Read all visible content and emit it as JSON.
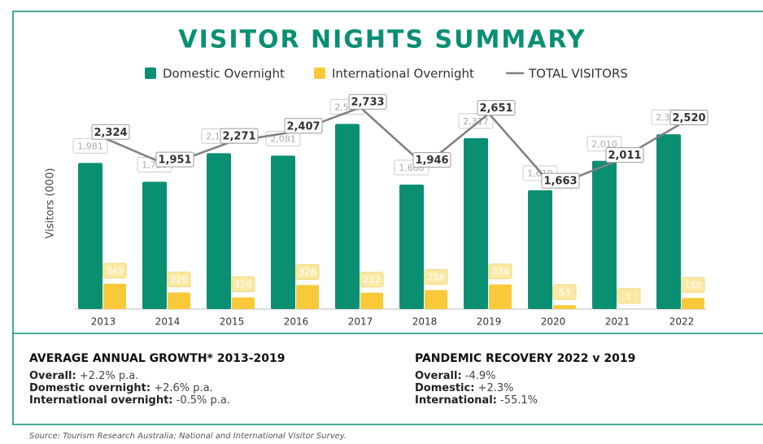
{
  "chart_data": {
    "type": "bar",
    "title": "VISITOR NIGHTS SUMMARY",
    "y_label": "Visitors (000)",
    "categories": [
      "2013",
      "2014",
      "2015",
      "2016",
      "2017",
      "2018",
      "2019",
      "2020",
      "2021",
      "2022"
    ],
    "ylim": [
      0,
      3000
    ],
    "series": [
      {
        "name": "Domestic Overnight",
        "color": "#0a8f73",
        "type": "bar",
        "values": [
          1981,
          1726,
          2113,
          2081,
          2511,
          1688,
          2317,
          1610,
          2010,
          2370
        ],
        "value_labels": [
          "1,981",
          "1,726",
          "2,113",
          "2,081",
          "2,511",
          "1,688",
          "2,317",
          "1,610",
          "2,010",
          "2,370"
        ]
      },
      {
        "name": "International Overnight",
        "color": "#f9c93a",
        "type": "bar",
        "values": [
          343,
          225,
          158,
          326,
          222,
          258,
          334,
          53,
          1,
          150
        ]
      },
      {
        "name": "TOTAL VISITORS",
        "color": "#808080",
        "type": "line",
        "values": [
          2324,
          1951,
          2271,
          2407,
          2733,
          1946,
          2651,
          1663,
          2011,
          2520
        ],
        "value_labels": [
          "2,324",
          "1,951",
          "2,271",
          "2,407",
          "2,733",
          "1,946",
          "2,651",
          "1,663",
          "2,011",
          "2,520"
        ]
      }
    ]
  },
  "growth": {
    "heading": "AVERAGE ANNUAL GROWTH* 2013-2019",
    "items": [
      {
        "label": "Overall:",
        "value": "+2.2% p.a."
      },
      {
        "label": "Domestic overnight:",
        "value": "+2.6% p.a."
      },
      {
        "label": "International overnight:",
        "value": "-0.5% p.a."
      }
    ]
  },
  "recovery": {
    "heading": "PANDEMIC RECOVERY 2022 v 2019",
    "items": [
      {
        "label": "Overall:",
        "value": "-4.9%"
      },
      {
        "label": "Domestic:",
        "value": "+2.3%"
      },
      {
        "label": "International:",
        "value": "-55.1%"
      }
    ]
  },
  "source": "Source: Tourism Research Australia; National and International Visitor Survey."
}
